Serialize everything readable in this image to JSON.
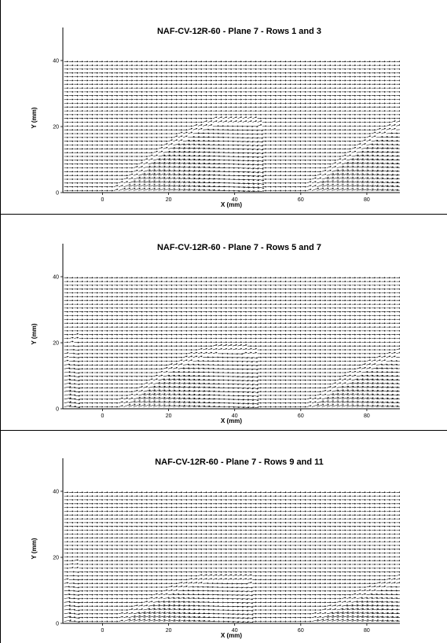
{
  "chart_data": [
    {
      "type": "vector-field",
      "title": "NAF-CV-12R-60  - Plane 7 - Rows 1 and 3",
      "xlabel": "X (mm)",
      "ylabel": "Y (mm)",
      "xlim": [
        -12,
        90
      ],
      "ylim": [
        0,
        50
      ],
      "xticks": [
        0,
        20,
        40,
        60,
        80
      ],
      "yticks": [
        0,
        20,
        40
      ],
      "grid": false,
      "field_top": 40,
      "jets": [
        {
          "x0": 3,
          "x1": 48,
          "peak": 21,
          "strength": 1.0
        },
        {
          "x0": 61,
          "x1": 106,
          "peak": 21,
          "strength": 1.0
        }
      ]
    },
    {
      "type": "vector-field",
      "title": "NAF-CV-12R-60  - Plane 7 - Rows 5 and 7",
      "xlabel": "X (mm)",
      "ylabel": "Y (mm)",
      "xlim": [
        -12,
        90
      ],
      "ylim": [
        0,
        50
      ],
      "xticks": [
        0,
        20,
        40,
        60,
        80
      ],
      "yticks": [
        0,
        20,
        40
      ],
      "grid": false,
      "field_top": 40,
      "jets": [
        {
          "x0": -14,
          "x1": -8,
          "peak": 21,
          "strength": 0.6
        },
        {
          "x0": 4,
          "x1": 46,
          "peak": 17,
          "strength": 0.85
        },
        {
          "x0": 61,
          "x1": 106,
          "peak": 17,
          "strength": 0.85
        }
      ]
    },
    {
      "type": "vector-field",
      "title": "NAF-CV-12R-60  - Plane 7 - Rows 9 and 11",
      "xlabel": "X (mm)",
      "ylabel": "Y (mm)",
      "xlim": [
        -12,
        90
      ],
      "ylim": [
        0,
        50
      ],
      "xticks": [
        0,
        20,
        40,
        60,
        80
      ],
      "yticks": [
        0,
        20,
        40
      ],
      "grid": false,
      "field_top": 40,
      "jets": [
        {
          "x0": -14,
          "x1": -8,
          "peak": 17,
          "strength": 0.5
        },
        {
          "x0": 4,
          "x1": 44,
          "peak": 13,
          "strength": 0.7
        },
        {
          "x0": 62,
          "x1": 106,
          "peak": 13,
          "strength": 0.7
        }
      ]
    }
  ]
}
